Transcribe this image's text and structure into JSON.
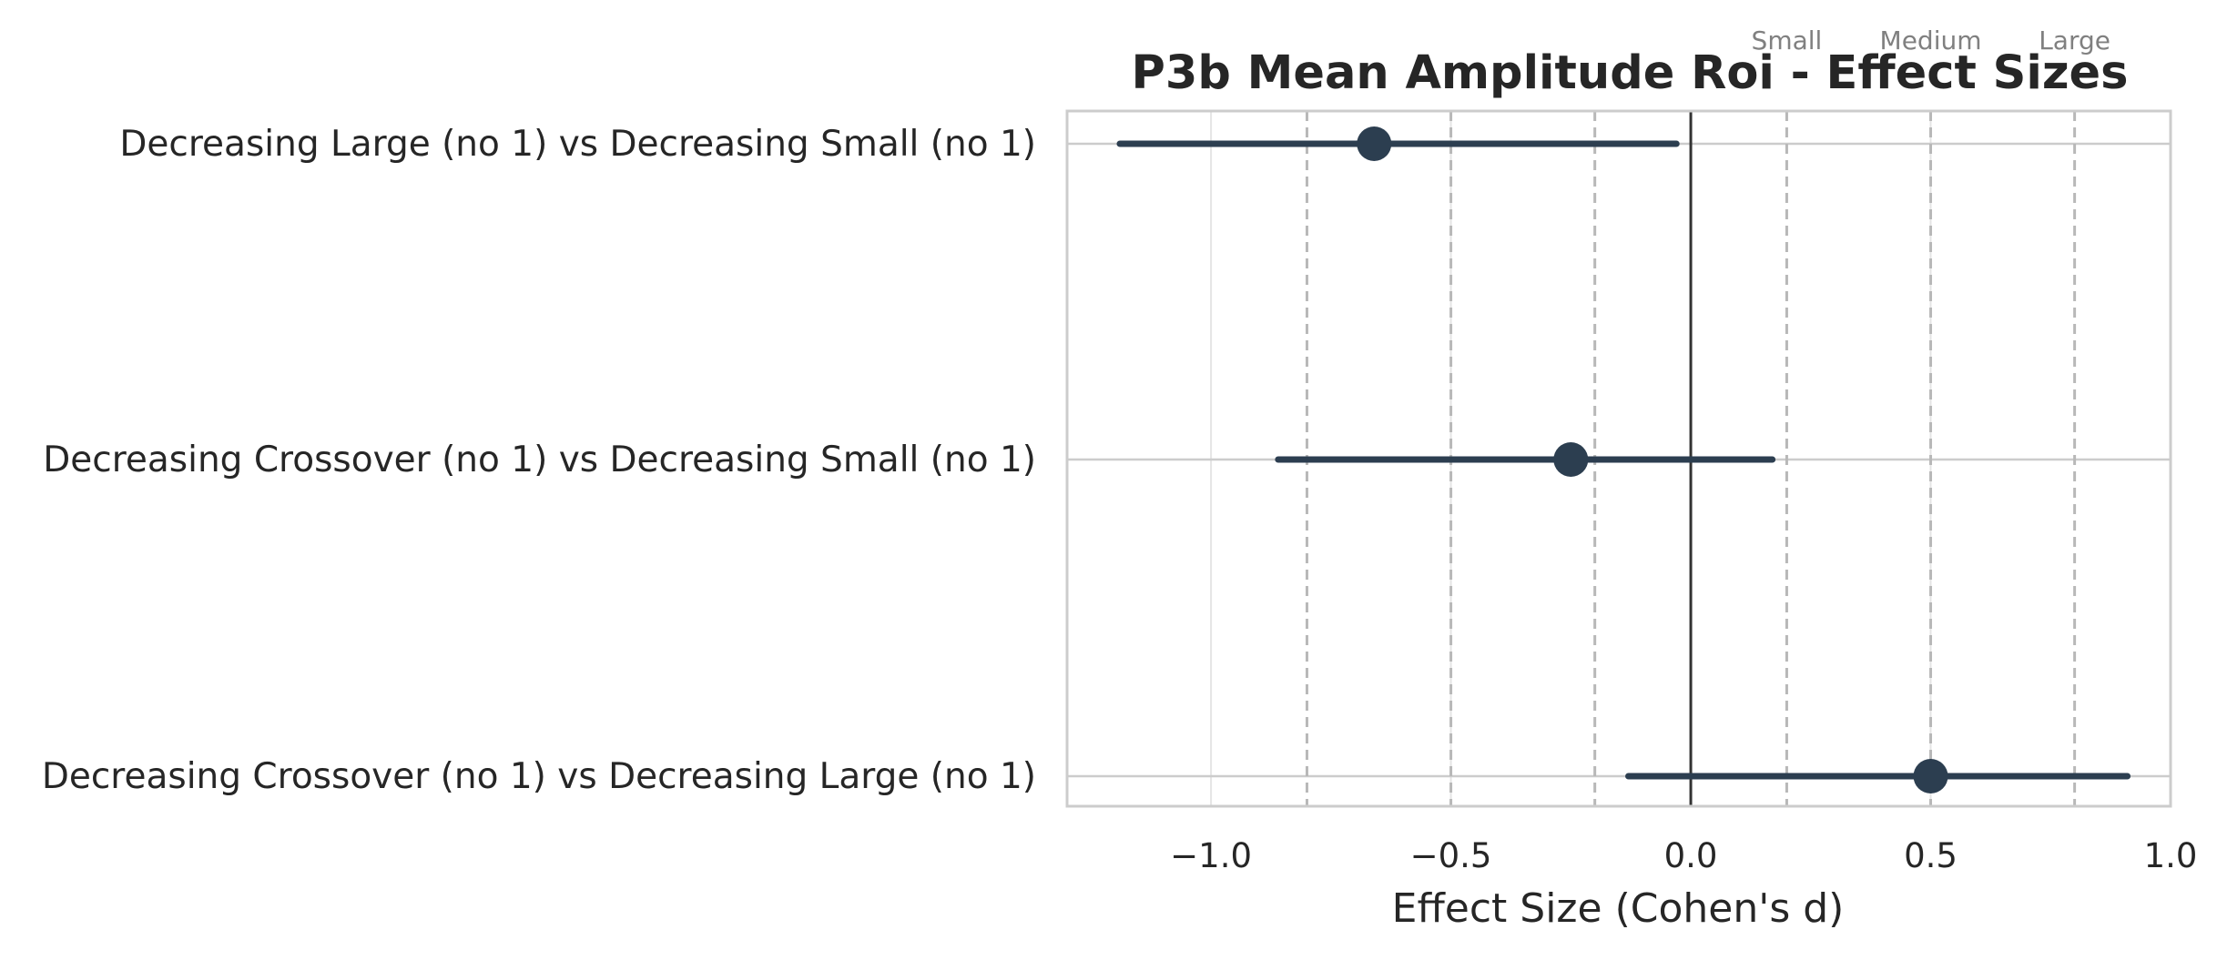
{
  "chart_data": {
    "type": "forest",
    "title": "P3b Mean Amplitude Roi - Effect Sizes",
    "xlabel": "Effect Size (Cohen's d)",
    "ylabel": "",
    "xlim": [
      -1.3,
      1.0
    ],
    "x_ticks": [
      -1.0,
      -0.5,
      0.0,
      0.5,
      1.0
    ],
    "x_tick_labels": [
      "−1.0",
      "−0.5",
      "0.0",
      "0.5",
      "1.0"
    ],
    "grid": true,
    "comparisons": [
      {
        "label": "Decreasing Large (no 1) vs Decreasing Small (no 1)",
        "d": -0.66,
        "ci_low": -1.19,
        "ci_high": -0.03
      },
      {
        "label": "Decreasing Crossover (no 1) vs Decreasing Small (no 1)",
        "d": -0.25,
        "ci_low": -0.86,
        "ci_high": 0.17
      },
      {
        "label": "Decreasing Crossover (no 1) vs Decreasing Large (no 1)",
        "d": 0.5,
        "ci_low": -0.13,
        "ci_high": 0.91
      }
    ],
    "reference_lines": [
      {
        "value": -0.8,
        "label": ""
      },
      {
        "value": -0.5,
        "label": ""
      },
      {
        "value": -0.2,
        "label": ""
      },
      {
        "value": 0.2,
        "label": "Small"
      },
      {
        "value": 0.5,
        "label": "Medium"
      },
      {
        "value": 0.8,
        "label": "Large"
      }
    ],
    "zero_line": 0.0,
    "colors": {
      "marker": "#2c3e50",
      "zero_line": "#333333",
      "reference_line": "#b8b8b8",
      "grid": "#e5e5e5",
      "frame": "#cccccc"
    }
  }
}
